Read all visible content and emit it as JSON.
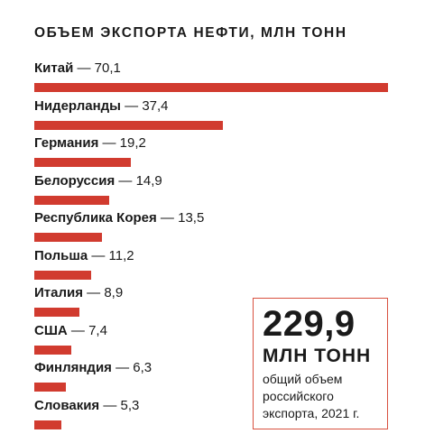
{
  "colors": {
    "bar": "#d13b2f",
    "border": "#d9503f",
    "text": "#1a1a1a"
  },
  "chart_data": {
    "type": "bar",
    "orientation": "horizontal",
    "title": "ОБЪЕМ ЭКСПОРТА НЕФТИ, МЛН ТОНН",
    "categories": [
      "Китай",
      "Нидерланды",
      "Германия",
      "Белоруссия",
      "Республика Корея",
      "Польша",
      "Италия",
      "США",
      "Финляндия",
      "Словакия"
    ],
    "values": [
      70.1,
      37.4,
      19.2,
      14.9,
      13.5,
      11.2,
      8.9,
      7.4,
      6.3,
      5.3
    ],
    "value_labels": [
      "70,1",
      "37,4",
      "19,2",
      "14,9",
      "13,5",
      "11,2",
      "8,9",
      "7,4",
      "6,3",
      "5,3"
    ],
    "xlim": [
      0,
      70.1
    ],
    "grid": false,
    "legend": "none"
  },
  "callout": {
    "value": "229,9",
    "unit": "МЛН ТОНН",
    "description_lines": [
      "общий объем",
      "российского",
      "экспорта, 2021 г."
    ]
  }
}
